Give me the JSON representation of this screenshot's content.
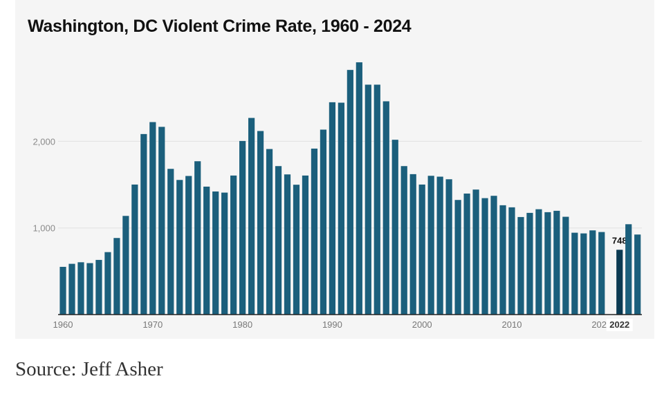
{
  "chart_data": {
    "type": "bar",
    "title": "Washington, DC Violent Crime Rate, 1960 - 2024",
    "xlabel": "",
    "ylabel": "",
    "ylim": [
      0,
      3000
    ],
    "yticks": [
      1000,
      2000
    ],
    "ytick_labels": [
      "1,000",
      "2,000"
    ],
    "xtick_labels": [
      "1960",
      "1970",
      "1980",
      "1990",
      "2000",
      "2010",
      "2020"
    ],
    "grid": true,
    "highlight": {
      "category": "2022",
      "value_label": "748",
      "axis_label": "2022"
    },
    "categories": [
      "1960",
      "1961",
      "1962",
      "1963",
      "1964",
      "1965",
      "1966",
      "1967",
      "1968",
      "1969",
      "1970",
      "1971",
      "1972",
      "1973",
      "1974",
      "1975",
      "1976",
      "1977",
      "1978",
      "1979",
      "1980",
      "1981",
      "1982",
      "1983",
      "1984",
      "1985",
      "1986",
      "1987",
      "1988",
      "1989",
      "1990",
      "1991",
      "1992",
      "1993",
      "1994",
      "1995",
      "1996",
      "1997",
      "1998",
      "1999",
      "2000",
      "2001",
      "2002",
      "2003",
      "2004",
      "2005",
      "2006",
      "2007",
      "2008",
      "2009",
      "2010",
      "2011",
      "2012",
      "2013",
      "2014",
      "2015",
      "2016",
      "2017",
      "2018",
      "2019",
      "2020",
      "2021",
      "2022",
      "2023",
      "2024"
    ],
    "values": [
      551,
      586,
      604,
      594,
      631,
      721,
      884,
      1139,
      1501,
      2084,
      2222,
      2167,
      1682,
      1554,
      1600,
      1770,
      1477,
      1421,
      1408,
      1605,
      2004,
      2270,
      2119,
      1911,
      1714,
      1618,
      1499,
      1605,
      1916,
      2135,
      2451,
      2446,
      2824,
      2912,
      2654,
      2654,
      2462,
      2018,
      1714,
      1621,
      1501,
      1602,
      1592,
      1562,
      1323,
      1397,
      1443,
      1344,
      1371,
      1262,
      1238,
      1126,
      1174,
      1216,
      1182,
      1198,
      1129,
      945,
      937,
      972,
      953,
      null,
      748,
      1043,
      924
    ],
    "colors": {
      "bar": "#1b5f7c",
      "highlight": "#0b3a52",
      "grid": "#e2e2e2",
      "axis": "#222222"
    }
  },
  "source": "Source: Jeff Asher"
}
